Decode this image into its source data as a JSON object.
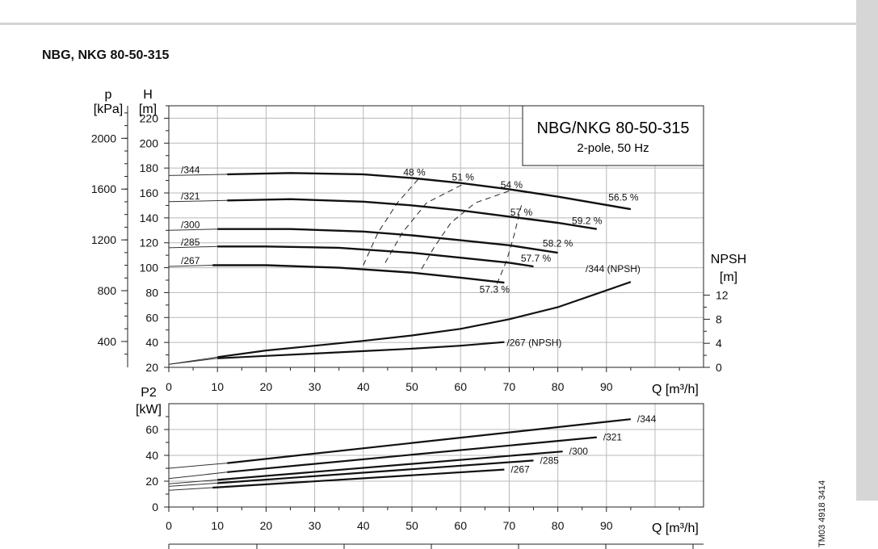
{
  "page": {
    "heading": "NBG, NKG 80-50-315",
    "side_code": "TM03 4918 3414"
  },
  "chart_data": [
    {
      "type": "line",
      "panel": "head-and-npsh",
      "title": "NBG/NKG 80-50-315",
      "subtitle": "2-pole, 50 Hz",
      "x_label": "Q [m³/h]",
      "x_range": [
        0,
        110
      ],
      "x_ticks": [
        0,
        10,
        20,
        30,
        40,
        50,
        60,
        70,
        80,
        90
      ],
      "y_label_unit_H": "H",
      "y_label_dim_H": "[m]",
      "y_range_H": [
        20,
        230
      ],
      "y_ticks_H": [
        20,
        40,
        60,
        80,
        100,
        120,
        140,
        160,
        180,
        200,
        220
      ],
      "y_label_unit_p": "p",
      "y_label_dim_p": "[kPa]",
      "y_ticks_p": [
        400,
        800,
        1200,
        1600,
        2000
      ],
      "y_label_unit_npsh": "NPSH",
      "y_label_dim_npsh": "[m]",
      "y_ticks_npsh": [
        0,
        4,
        8,
        12
      ],
      "grid": true,
      "series": [
        {
          "name": "/344",
          "x": [
            0,
            12,
            25,
            40,
            50,
            60,
            70,
            80,
            95
          ],
          "y": [
            174,
            175,
            176,
            175,
            172,
            168,
            163,
            157,
            147
          ]
        },
        {
          "name": "/321",
          "x": [
            0,
            12,
            25,
            40,
            50,
            60,
            70,
            80,
            88
          ],
          "y": [
            153,
            154,
            155,
            153,
            150,
            146,
            141,
            136,
            131
          ]
        },
        {
          "name": "/300",
          "x": [
            0,
            10,
            25,
            40,
            50,
            60,
            70,
            80
          ],
          "y": [
            130,
            131,
            131,
            129,
            126,
            122,
            118,
            112
          ]
        },
        {
          "name": "/285",
          "x": [
            0,
            10,
            20,
            35,
            50,
            60,
            70,
            75
          ],
          "y": [
            116,
            117,
            117,
            116,
            112,
            108,
            104,
            101
          ]
        },
        {
          "name": "/267",
          "x": [
            0,
            9,
            20,
            35,
            50,
            60,
            69
          ],
          "y": [
            101,
            102,
            102,
            100,
            96,
            92,
            88
          ]
        },
        {
          "name": "/344 (NPSH)",
          "x": [
            0,
            10,
            20,
            30,
            40,
            50,
            60,
            70,
            80,
            95
          ],
          "y": [
            0.5,
            1.7,
            2.8,
            3.6,
            4.4,
            5.3,
            6.4,
            8.0,
            10.0,
            14.2
          ]
        },
        {
          "name": "/267 (NPSH)",
          "x": [
            0,
            10,
            20,
            30,
            40,
            50,
            60,
            69
          ],
          "y": [
            0.5,
            1.5,
            1.9,
            2.3,
            2.7,
            3.1,
            3.6,
            4.2
          ]
        }
      ],
      "efficiency_labels": [
        {
          "text": "48 %",
          "x": 50.5,
          "y": 174
        },
        {
          "text": "51 %",
          "x": 60.5,
          "y": 170
        },
        {
          "text": "54 %",
          "x": 70.5,
          "y": 164
        },
        {
          "text": "56.5 %",
          "x": 93.5,
          "y": 154
        },
        {
          "text": "57 %",
          "x": 72.5,
          "y": 142
        },
        {
          "text": "59.2 %",
          "x": 86,
          "y": 135
        },
        {
          "text": "58.2 %",
          "x": 80,
          "y": 117
        },
        {
          "text": "57.7 %",
          "x": 75.5,
          "y": 105
        },
        {
          "text": "57.3 %",
          "x": 67,
          "y": 80
        }
      ],
      "efficiency_curves": [
        {
          "label": "48 %",
          "x": [
            40,
            43,
            47,
            51.5
          ],
          "y": [
            102,
            128,
            152,
            172
          ]
        },
        {
          "label": "51 %",
          "x": [
            44.5,
            48,
            53,
            61
          ],
          "y": [
            104,
            128,
            152,
            168
          ]
        },
        {
          "label": "54 %",
          "x": [
            52,
            54.5,
            58,
            63,
            71
          ],
          "y": [
            99,
            116,
            136,
            152,
            163
          ]
        },
        {
          "label": "57 %",
          "x": [
            67.5,
            69.5,
            71,
            72.5
          ],
          "y": [
            87,
            106,
            126,
            150
          ]
        }
      ]
    },
    {
      "type": "line",
      "panel": "power",
      "title": "",
      "x_label": "Q [m³/h]",
      "x_range": [
        0,
        110
      ],
      "x_ticks": [
        0,
        10,
        20,
        30,
        40,
        50,
        60,
        70,
        80,
        90
      ],
      "y_label_unit": "P2",
      "y_label_dim": "[kW]",
      "y_range": [
        0,
        80
      ],
      "y_ticks": [
        0,
        20,
        40,
        60
      ],
      "grid": true,
      "series": [
        {
          "name": "/344",
          "x": [
            0,
            12,
            95
          ],
          "y": [
            30,
            34,
            68
          ]
        },
        {
          "name": "/321",
          "x": [
            0,
            12,
            88
          ],
          "y": [
            22,
            27,
            54
          ]
        },
        {
          "name": "/300",
          "x": [
            0,
            10,
            81
          ],
          "y": [
            18,
            21,
            43
          ]
        },
        {
          "name": "/285",
          "x": [
            0,
            10,
            75
          ],
          "y": [
            16,
            18.5,
            36
          ]
        },
        {
          "name": "/267",
          "x": [
            0,
            9,
            69
          ],
          "y": [
            13,
            15,
            29
          ]
        }
      ]
    }
  ]
}
